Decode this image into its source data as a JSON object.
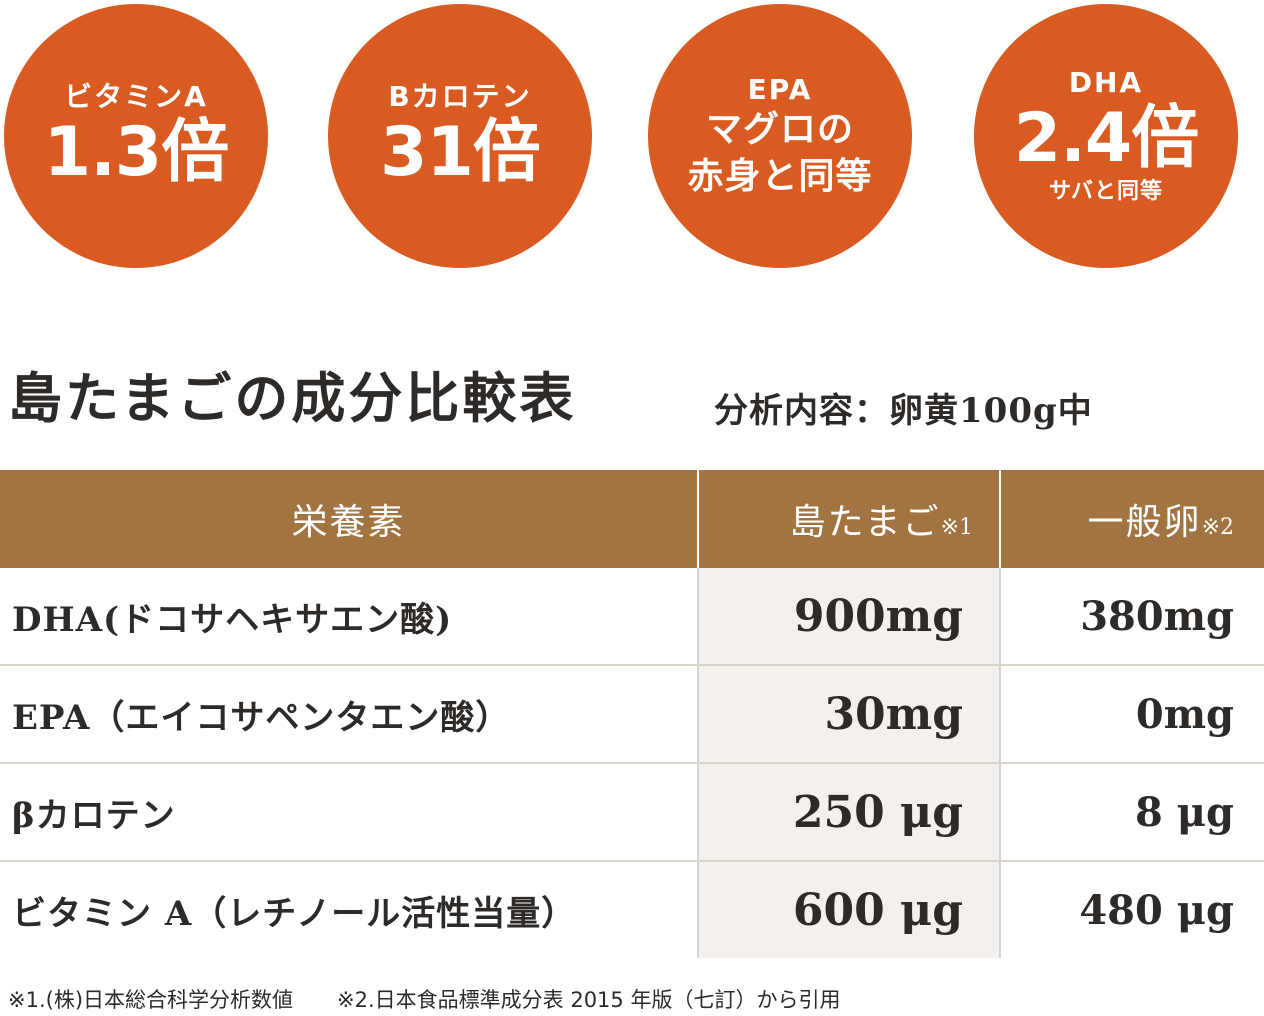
{
  "badges": [
    {
      "top": "ビタミンA",
      "big": "1.3倍"
    },
    {
      "top": "Bカロテン",
      "big": "31倍"
    },
    {
      "top": "EPA",
      "line2": "マグロの",
      "line3": "赤身と同等"
    },
    {
      "top": "DHA",
      "big": "2.4倍",
      "small": "サバと同等"
    }
  ],
  "title": "島たまごの成分比較表",
  "subtitle": "分析内容：卵黄100g中",
  "table": {
    "headers": {
      "nutrient": "栄養素",
      "shima": "島たまご",
      "shima_note": "※1",
      "general": "一般卵",
      "general_note": "※2"
    },
    "rows": [
      {
        "name": "DHA(ドコサヘキサエン酸)",
        "shima": "900mg",
        "general": "380mg"
      },
      {
        "name": "EPA（エイコサペンタエン酸）",
        "shima": "30mg",
        "general": "0mg"
      },
      {
        "name": "βカロテン",
        "shima": "250 μg",
        "general": "8 μg"
      },
      {
        "name": "ビタミン A（レチノール活性当量）",
        "shima": "600 μg",
        "general": "480 μg"
      }
    ]
  },
  "footnotes": {
    "note1": "※1.(株)日本総合科学分析数値",
    "note2": "※2.日本食品標準成分表 2015 年版（七訂）から引用"
  },
  "colors": {
    "badge": "#d95b21",
    "header": "#a27441",
    "shaded_column": "#f4f1ec"
  }
}
